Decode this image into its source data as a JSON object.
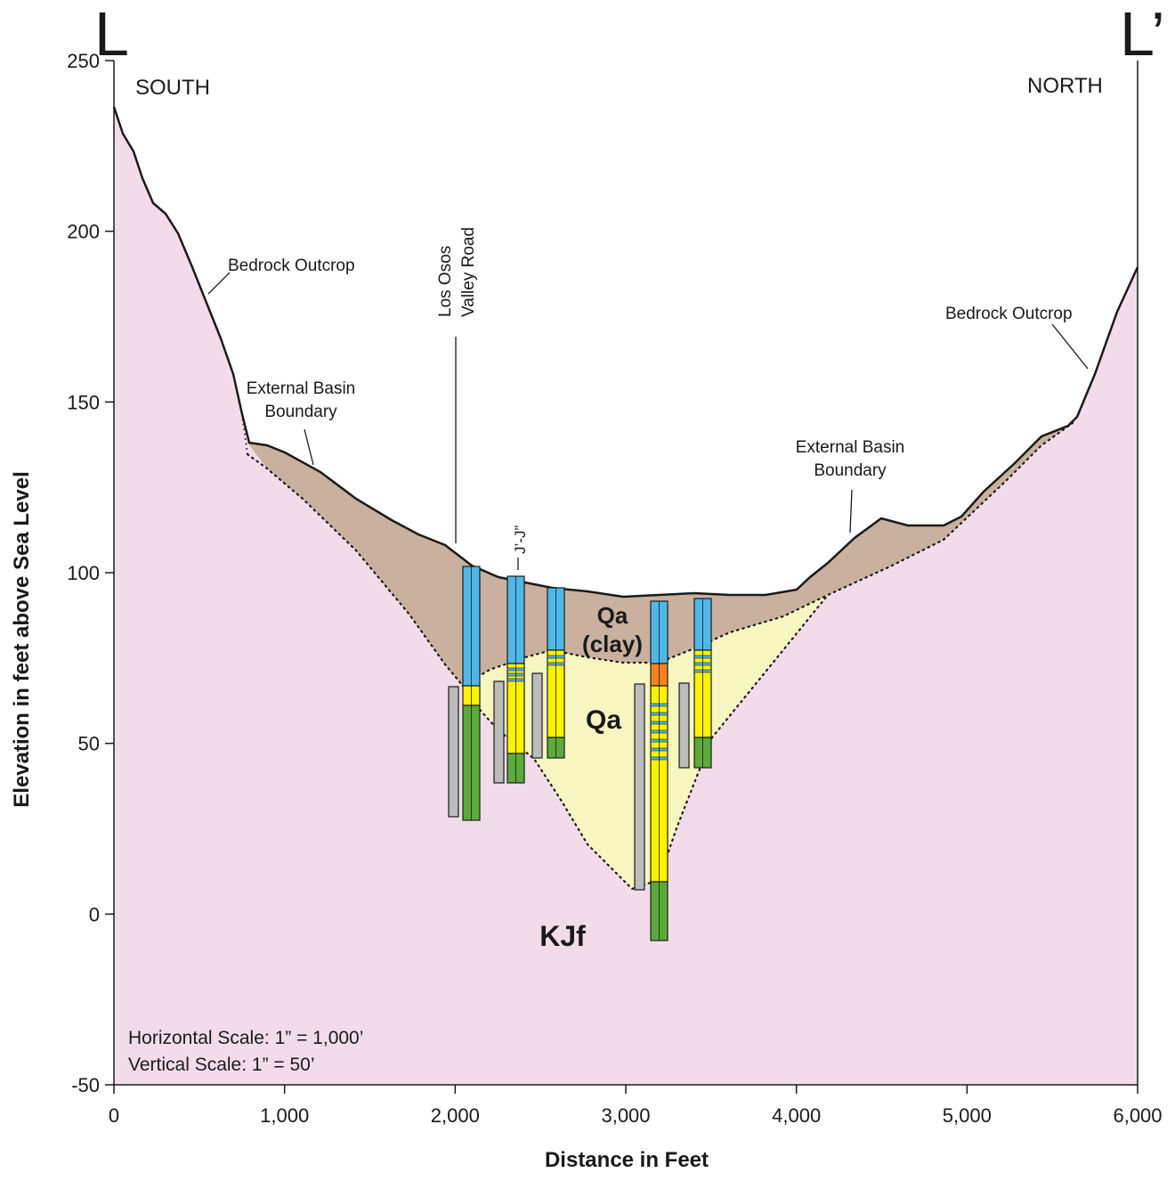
{
  "title": {
    "left": "L",
    "right": "L’"
  },
  "directions": {
    "left": "SOUTH",
    "right": "NORTH"
  },
  "axes": {
    "y_label": "Elevation in feet above Sea Level",
    "x_label": "Distance in Feet",
    "y_ticks": [
      "250",
      "200",
      "150",
      "100",
      "50",
      "0",
      "-50"
    ],
    "x_ticks": [
      "0",
      "1,000",
      "2,000",
      "3,000",
      "4,000",
      "5,000",
      "6,000"
    ],
    "x_range": [
      0,
      6000
    ],
    "y_range": [
      -50,
      250
    ]
  },
  "annotations": {
    "bedrock_left": "Bedrock Outcrop",
    "bedrock_right": "Bedrock Outcrop",
    "ebb_left_line1": "External Basin",
    "ebb_left_line2": "Boundary",
    "ebb_right_line1": "External Basin",
    "ebb_right_line2": "Boundary",
    "road_line1": "Los Osos",
    "road_line2": "Valley Road",
    "crossing": "J’-J”"
  },
  "units": {
    "qa_clay_line1": "Qa",
    "qa_clay_line2": "(clay)",
    "qa": "Qa",
    "kjf": "KJf"
  },
  "scale": {
    "horizontal": "Horizontal Scale:  1” = 1,000’",
    "vertical": "Vertical Scale:  1” = 50’"
  },
  "colors": {
    "bedrock": "#f2dcea",
    "clay": "#c9b09f",
    "alluvium": "#f7f5c0",
    "log_blue": "#4fb8e8",
    "log_yellow": "#fff200",
    "log_green": "#5aab3a",
    "log_orange": "#f58220",
    "log_gray": "#bcbcbc"
  }
}
